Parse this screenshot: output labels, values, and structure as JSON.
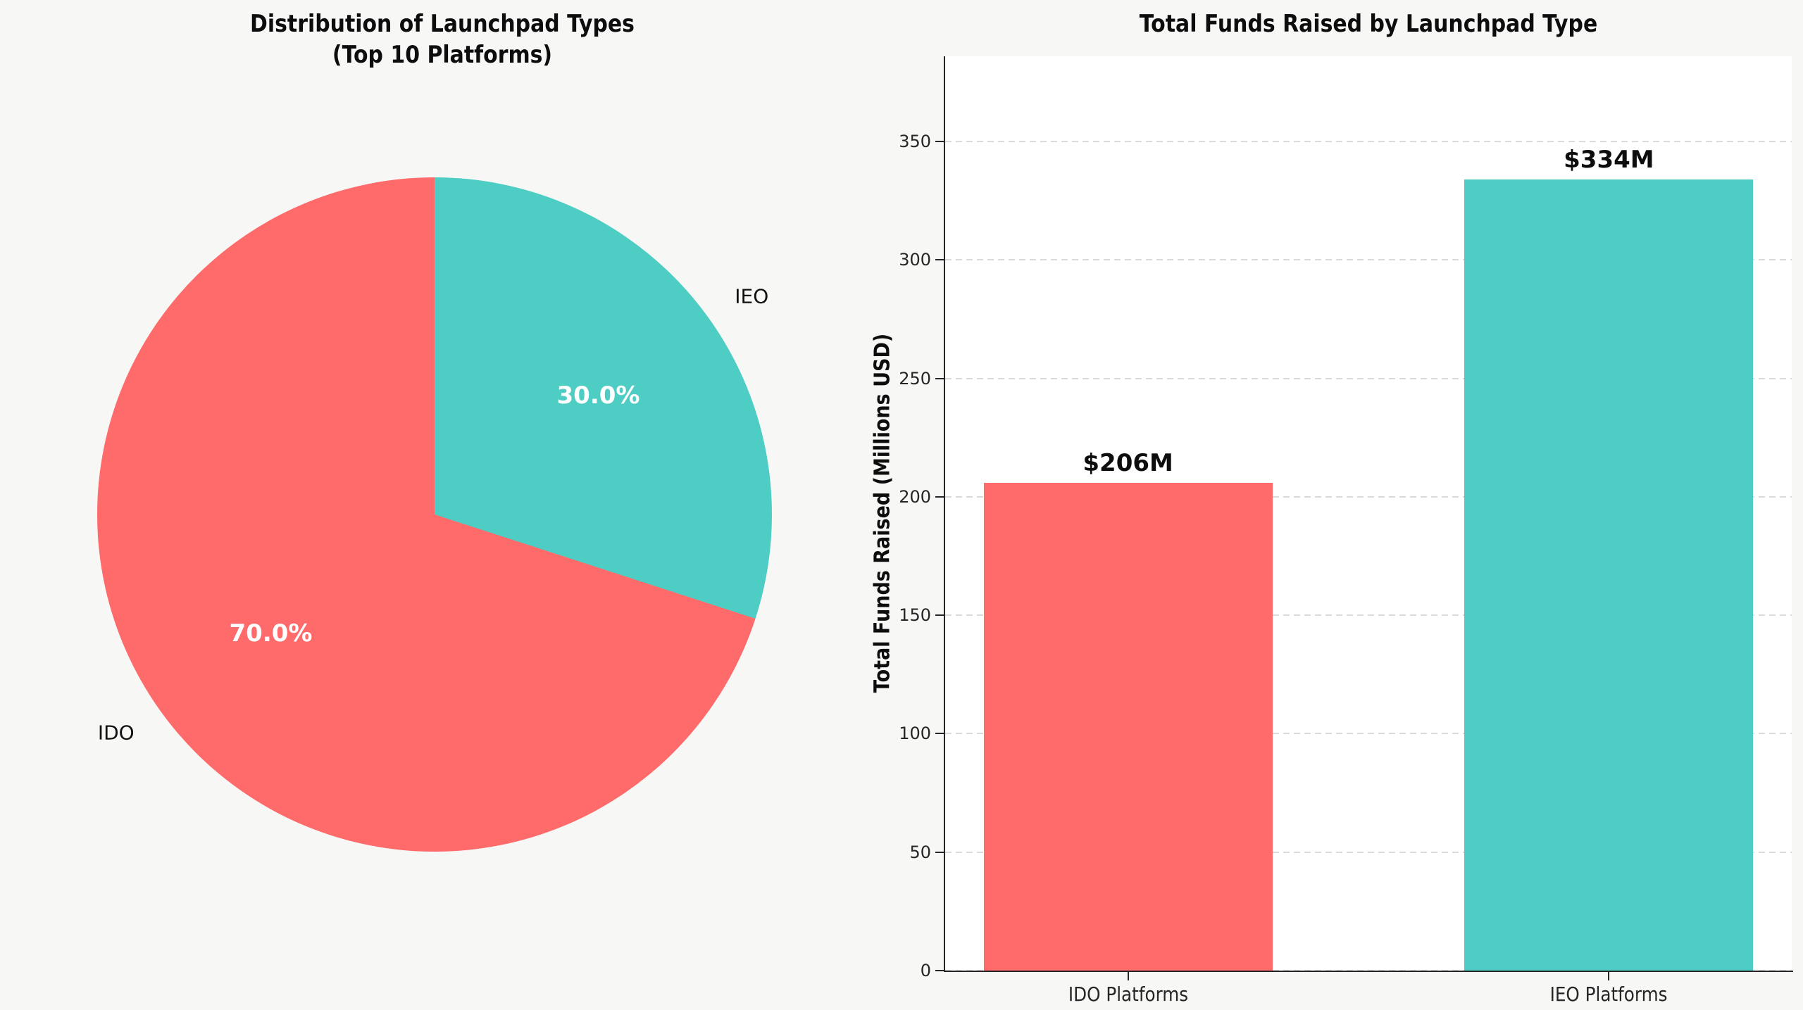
{
  "figure": {
    "background": "#f7f7f6",
    "plot_background": "#ffffff",
    "text_color": "#0d0d0d"
  },
  "chart_data": [
    {
      "type": "pie",
      "title": "Distribution of Launchpad Types\n(Top 10 Platforms)",
      "title_lines": [
        "Distribution of Launchpad Types",
        "(Top 10 Platforms)"
      ],
      "labels": [
        "IDO",
        "IEO"
      ],
      "values": [
        70.0,
        30.0
      ],
      "unit": "percent",
      "slice_labels": [
        "70.0%",
        "30.0%"
      ],
      "colors": [
        "#FF6B6B",
        "#4ECDC4"
      ],
      "start_angle": 90,
      "counterclock": true,
      "pct_label_color": "#ffffff",
      "legend": "none"
    },
    {
      "type": "bar",
      "title": "Total Funds Raised by Launchpad Type",
      "categories": [
        "IDO Platforms",
        "IEO Platforms"
      ],
      "values": [
        206,
        334
      ],
      "bar_labels": [
        "$206M",
        "$334M"
      ],
      "colors": [
        "#FF6B6B",
        "#4ECDC4"
      ],
      "xlabel": "",
      "ylabel": "Total Funds Raised (Millions USD)",
      "yticks": [
        0,
        50,
        100,
        150,
        200,
        250,
        300,
        350
      ],
      "ylim": [
        0,
        386
      ],
      "grid": "horizontal-dashed",
      "legend": "none"
    }
  ]
}
